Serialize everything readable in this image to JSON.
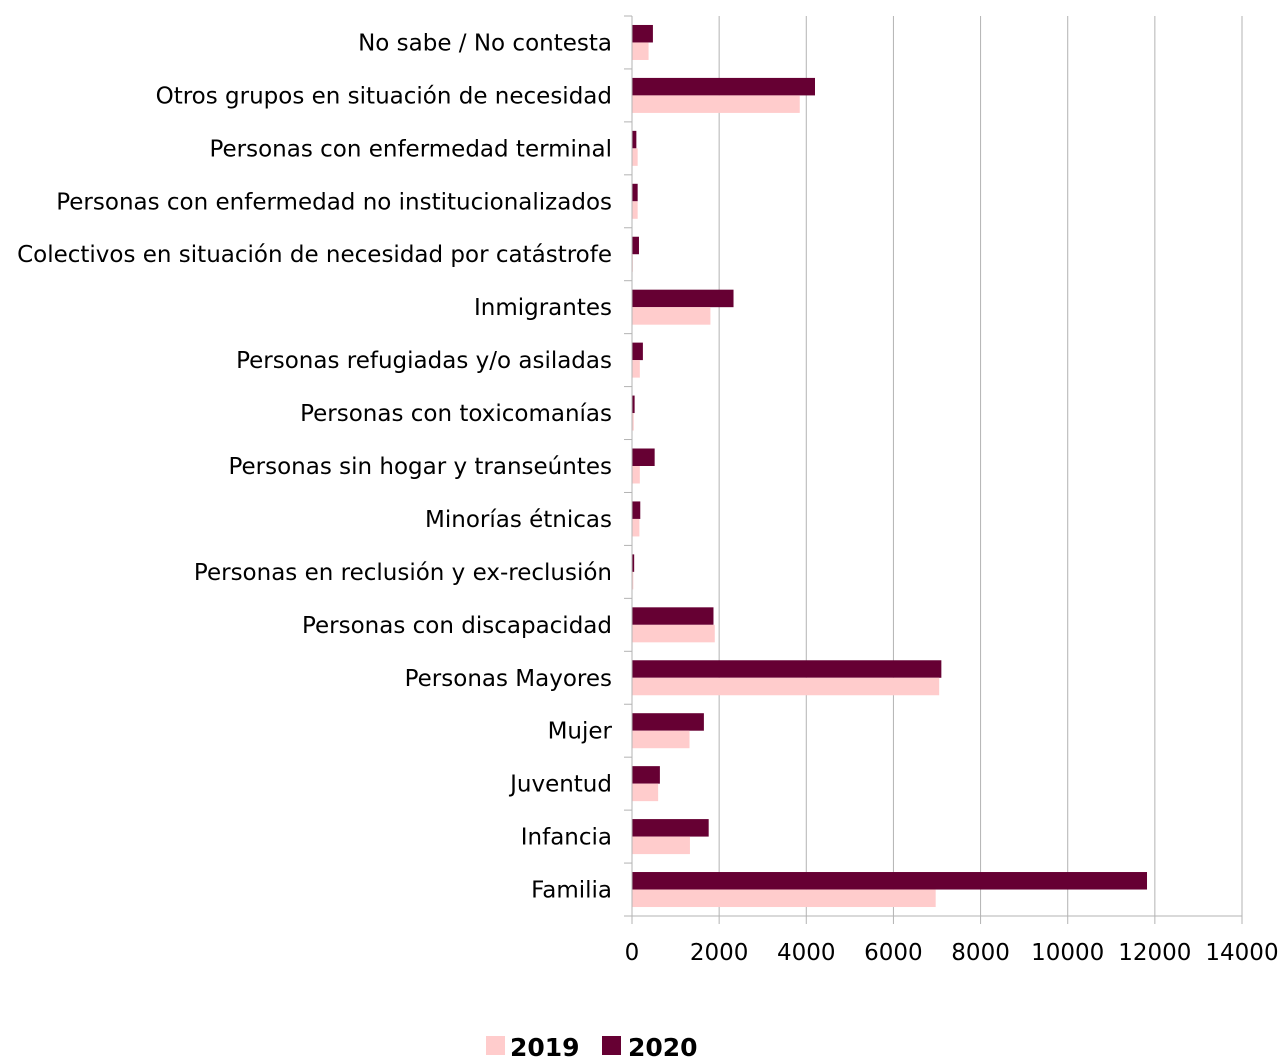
{
  "chart_data": {
    "type": "bar",
    "orientation": "horizontal",
    "categories": [
      "No sabe / No contesta",
      "Otros grupos en situación de necesidad",
      "Personas con enfermedad terminal",
      "Personas con enfermedad no institucionalizados",
      "Colectivos en situación de necesidad por catástrofe",
      "Inmigrantes",
      "Personas refugiadas y/o asiladas",
      "Personas con toxicomanías",
      "Personas sin hogar y transeúntes",
      "Minorías étnicas",
      "Personas en reclusión y ex-reclusión",
      "Personas con discapacidad",
      "Personas Mayores",
      "Mujer",
      "Juventud",
      "Infancia",
      "Familia"
    ],
    "series": [
      {
        "name": "2019",
        "color": "#ffcccc",
        "values": [
          380,
          3850,
          130,
          130,
          20,
          1800,
          180,
          40,
          180,
          170,
          30,
          1900,
          7050,
          1320,
          600,
          1330,
          6970
        ]
      },
      {
        "name": "2020",
        "color": "#660033",
        "values": [
          480,
          4200,
          100,
          130,
          160,
          2330,
          250,
          60,
          520,
          190,
          50,
          1870,
          7100,
          1650,
          640,
          1760,
          11820
        ]
      }
    ],
    "xlim": [
      0,
      14000
    ],
    "xticks": [
      "0",
      "2000",
      "4000",
      "6000",
      "8000",
      "10000",
      "12000",
      "14000"
    ],
    "grid": "vertical",
    "legend_position": "bottom"
  }
}
